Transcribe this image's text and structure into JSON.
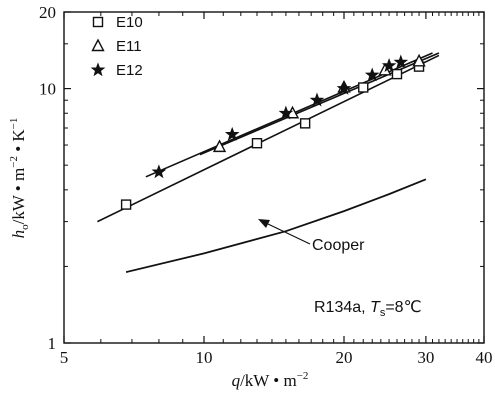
{
  "chart_data": {
    "type": "scatter",
    "xscale": "log",
    "yscale": "log",
    "xlim": [
      5,
      40
    ],
    "ylim": [
      1,
      20
    ],
    "x_ticks": [
      {
        "value": 5,
        "label": "5"
      },
      {
        "value": 10,
        "label": "10"
      },
      {
        "value": 20,
        "label": "20"
      },
      {
        "value": 30,
        "label": "30"
      },
      {
        "value": 40,
        "label": "40"
      }
    ],
    "y_ticks": [
      {
        "value": 1,
        "label": "1"
      },
      {
        "value": 10,
        "label": "10"
      },
      {
        "value": 20,
        "label": "20"
      }
    ],
    "xlabel": {
      "sym": "q",
      "unit": "/kW • m",
      "sup": "−2"
    },
    "ylabel": {
      "sym": "h",
      "sub": "o",
      "unit1": "/kW • m",
      "sup1": "−2",
      "unit2": " • K",
      "sup2": "−1"
    },
    "legend_position": "top-left",
    "series": [
      {
        "name": "E10",
        "marker": "square",
        "points": [
          [
            6.8,
            3.5
          ],
          [
            13.0,
            6.1
          ],
          [
            16.5,
            7.3
          ],
          [
            22.0,
            10.1
          ],
          [
            26.0,
            11.4
          ],
          [
            29.0,
            12.2
          ]
        ],
        "fit": [
          [
            5.9,
            3.0
          ],
          [
            32.0,
            13.5
          ]
        ]
      },
      {
        "name": "E11",
        "marker": "triangle",
        "points": [
          [
            10.8,
            5.9
          ],
          [
            15.5,
            8.0
          ],
          [
            20.0,
            10.1
          ],
          [
            24.5,
            11.8
          ],
          [
            29.0,
            12.8
          ]
        ],
        "fit": [
          [
            9.8,
            5.5
          ],
          [
            32.0,
            13.8
          ]
        ]
      },
      {
        "name": "E12",
        "marker": "star",
        "points": [
          [
            8.0,
            4.7
          ],
          [
            11.5,
            6.6
          ],
          [
            15.0,
            8.0
          ],
          [
            17.5,
            9.0
          ],
          [
            20.0,
            10.0
          ],
          [
            23.0,
            11.3
          ],
          [
            25.0,
            12.3
          ],
          [
            26.5,
            12.7
          ]
        ],
        "fit": [
          [
            7.5,
            4.5
          ],
          [
            31.0,
            13.8
          ]
        ]
      }
    ],
    "reference_curve": {
      "name": "Cooper",
      "points": [
        [
          6.8,
          1.9
        ],
        [
          10,
          2.25
        ],
        [
          15,
          2.75
        ],
        [
          20,
          3.3
        ],
        [
          25,
          3.85
        ],
        [
          30,
          4.4
        ]
      ]
    },
    "annotations": {
      "cooper_label": "Cooper",
      "condition": {
        "fluid": "R134a, ",
        "sym": "T",
        "sub": "s",
        "value": "=8℃"
      }
    }
  }
}
